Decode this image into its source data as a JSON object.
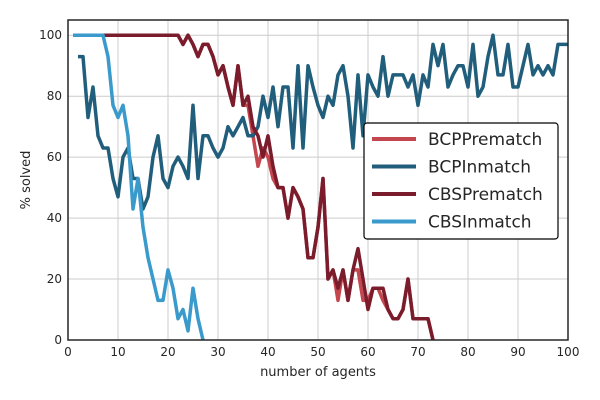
{
  "chart_data": {
    "type": "line",
    "title": "",
    "xlabel": "number of agents",
    "ylabel": "% solved",
    "xlim": [
      0,
      100
    ],
    "ylim": [
      0,
      105
    ],
    "xticks": [
      "0",
      "10",
      "20",
      "30",
      "40",
      "50",
      "60",
      "70",
      "80",
      "90",
      "100"
    ],
    "yticks": [
      "0",
      "20",
      "40",
      "60",
      "80",
      "100"
    ],
    "grid": true,
    "legend_position": "center-right",
    "series": [
      {
        "name": "BCPPrematch",
        "color": "#c4474f",
        "points": [
          [
            2,
            100
          ],
          [
            10,
            100
          ],
          [
            20,
            100
          ],
          [
            22,
            100
          ],
          [
            23,
            97
          ],
          [
            24,
            100
          ],
          [
            25,
            97
          ],
          [
            26,
            93
          ],
          [
            27,
            97
          ],
          [
            28,
            97
          ],
          [
            29,
            93
          ],
          [
            30,
            87
          ],
          [
            31,
            90
          ],
          [
            32,
            83
          ],
          [
            33,
            77
          ],
          [
            34,
            90
          ],
          [
            35,
            77
          ],
          [
            36,
            77
          ],
          [
            37,
            67
          ],
          [
            38,
            57
          ],
          [
            39,
            63
          ],
          [
            40,
            60
          ],
          [
            41,
            53
          ],
          [
            42,
            50
          ],
          [
            43,
            50
          ],
          [
            44,
            40
          ],
          [
            45,
            50
          ],
          [
            46,
            47
          ],
          [
            47,
            43
          ],
          [
            48,
            27
          ],
          [
            49,
            27
          ],
          [
            50,
            37
          ],
          [
            51,
            53
          ],
          [
            52,
            20
          ],
          [
            53,
            23
          ],
          [
            54,
            13
          ],
          [
            55,
            23
          ],
          [
            56,
            13
          ],
          [
            57,
            23
          ],
          [
            58,
            23
          ],
          [
            59,
            13
          ],
          [
            60,
            13
          ],
          [
            61,
            17
          ],
          [
            62,
            17
          ],
          [
            63,
            13
          ],
          [
            64,
            10
          ],
          [
            65,
            7
          ],
          [
            66,
            7
          ],
          [
            67,
            10
          ],
          [
            68,
            20
          ],
          [
            69,
            7
          ],
          [
            70,
            7
          ],
          [
            71,
            7
          ],
          [
            72,
            7
          ],
          [
            73,
            0
          ]
        ]
      },
      {
        "name": "BCPInmatch",
        "color": "#215e7c",
        "points": [
          [
            2,
            93
          ],
          [
            3,
            93
          ],
          [
            4,
            73
          ],
          [
            5,
            83
          ],
          [
            6,
            67
          ],
          [
            7,
            63
          ],
          [
            8,
            63
          ],
          [
            9,
            53
          ],
          [
            10,
            47
          ],
          [
            11,
            60
          ],
          [
            12,
            63
          ],
          [
            13,
            53
          ],
          [
            14,
            53
          ],
          [
            15,
            43
          ],
          [
            16,
            47
          ],
          [
            17,
            60
          ],
          [
            18,
            67
          ],
          [
            19,
            53
          ],
          [
            20,
            50
          ],
          [
            21,
            57
          ],
          [
            22,
            60
          ],
          [
            23,
            57
          ],
          [
            24,
            53
          ],
          [
            25,
            77
          ],
          [
            26,
            53
          ],
          [
            27,
            67
          ],
          [
            28,
            67
          ],
          [
            29,
            63
          ],
          [
            30,
            60
          ],
          [
            31,
            63
          ],
          [
            32,
            70
          ],
          [
            33,
            67
          ],
          [
            34,
            70
          ],
          [
            35,
            73
          ],
          [
            36,
            67
          ],
          [
            37,
            67
          ],
          [
            38,
            70
          ],
          [
            39,
            80
          ],
          [
            40,
            73
          ],
          [
            41,
            83
          ],
          [
            42,
            70
          ],
          [
            43,
            83
          ],
          [
            44,
            83
          ],
          [
            45,
            63
          ],
          [
            46,
            90
          ],
          [
            47,
            63
          ],
          [
            48,
            90
          ],
          [
            49,
            83
          ],
          [
            50,
            77
          ],
          [
            51,
            73
          ],
          [
            52,
            80
          ],
          [
            53,
            77
          ],
          [
            54,
            87
          ],
          [
            55,
            90
          ],
          [
            56,
            80
          ],
          [
            57,
            63
          ],
          [
            58,
            87
          ],
          [
            59,
            67
          ],
          [
            60,
            87
          ],
          [
            61,
            83
          ],
          [
            62,
            80
          ],
          [
            63,
            93
          ],
          [
            64,
            80
          ],
          [
            65,
            87
          ],
          [
            66,
            87
          ],
          [
            67,
            87
          ],
          [
            68,
            83
          ],
          [
            69,
            87
          ],
          [
            70,
            77
          ],
          [
            71,
            87
          ],
          [
            72,
            83
          ],
          [
            73,
            97
          ],
          [
            74,
            90
          ],
          [
            75,
            97
          ],
          [
            76,
            83
          ],
          [
            77,
            87
          ],
          [
            78,
            90
          ],
          [
            79,
            90
          ],
          [
            80,
            83
          ],
          [
            81,
            97
          ],
          [
            82,
            80
          ],
          [
            83,
            83
          ],
          [
            84,
            93
          ],
          [
            85,
            100
          ],
          [
            86,
            87
          ],
          [
            87,
            87
          ],
          [
            88,
            97
          ],
          [
            89,
            83
          ],
          [
            90,
            83
          ],
          [
            91,
            90
          ],
          [
            92,
            97
          ],
          [
            93,
            87
          ],
          [
            94,
            90
          ],
          [
            95,
            87
          ],
          [
            96,
            90
          ],
          [
            97,
            87
          ],
          [
            98,
            97
          ],
          [
            99,
            97
          ],
          [
            100,
            97
          ]
        ]
      },
      {
        "name": "CBSPrematch",
        "color": "#7a1c2b",
        "points": [
          [
            6,
            100
          ],
          [
            20,
            100
          ],
          [
            22,
            100
          ],
          [
            23,
            97
          ],
          [
            24,
            100
          ],
          [
            25,
            97
          ],
          [
            26,
            93
          ],
          [
            27,
            97
          ],
          [
            28,
            97
          ],
          [
            29,
            93
          ],
          [
            30,
            87
          ],
          [
            31,
            90
          ],
          [
            32,
            83
          ],
          [
            33,
            77
          ],
          [
            34,
            90
          ],
          [
            35,
            77
          ],
          [
            36,
            80
          ],
          [
            37,
            70
          ],
          [
            38,
            67
          ],
          [
            39,
            60
          ],
          [
            40,
            67
          ],
          [
            41,
            57
          ],
          [
            42,
            50
          ],
          [
            43,
            50
          ],
          [
            44,
            40
          ],
          [
            45,
            50
          ],
          [
            46,
            47
          ],
          [
            47,
            43
          ],
          [
            48,
            27
          ],
          [
            49,
            27
          ],
          [
            50,
            37
          ],
          [
            51,
            53
          ],
          [
            52,
            20
          ],
          [
            53,
            23
          ],
          [
            54,
            17
          ],
          [
            55,
            23
          ],
          [
            56,
            13
          ],
          [
            57,
            23
          ],
          [
            58,
            30
          ],
          [
            59,
            20
          ],
          [
            60,
            10
          ],
          [
            61,
            17
          ],
          [
            62,
            17
          ],
          [
            63,
            17
          ],
          [
            64,
            10
          ],
          [
            65,
            7
          ],
          [
            66,
            7
          ],
          [
            67,
            10
          ],
          [
            68,
            20
          ],
          [
            69,
            7
          ],
          [
            70,
            7
          ],
          [
            71,
            7
          ],
          [
            72,
            7
          ],
          [
            73,
            0
          ]
        ]
      },
      {
        "name": "CBSInmatch",
        "color": "#3a9acb",
        "points": [
          [
            1,
            100
          ],
          [
            7,
            100
          ],
          [
            8,
            93
          ],
          [
            9,
            77
          ],
          [
            10,
            73
          ],
          [
            11,
            77
          ],
          [
            12,
            67
          ],
          [
            13,
            43
          ],
          [
            14,
            53
          ],
          [
            15,
            37
          ],
          [
            16,
            27
          ],
          [
            17,
            20
          ],
          [
            18,
            13
          ],
          [
            19,
            13
          ],
          [
            20,
            23
          ],
          [
            21,
            17
          ],
          [
            22,
            7
          ],
          [
            23,
            10
          ],
          [
            24,
            3
          ],
          [
            25,
            17
          ],
          [
            26,
            7
          ],
          [
            27,
            0
          ]
        ]
      }
    ]
  }
}
